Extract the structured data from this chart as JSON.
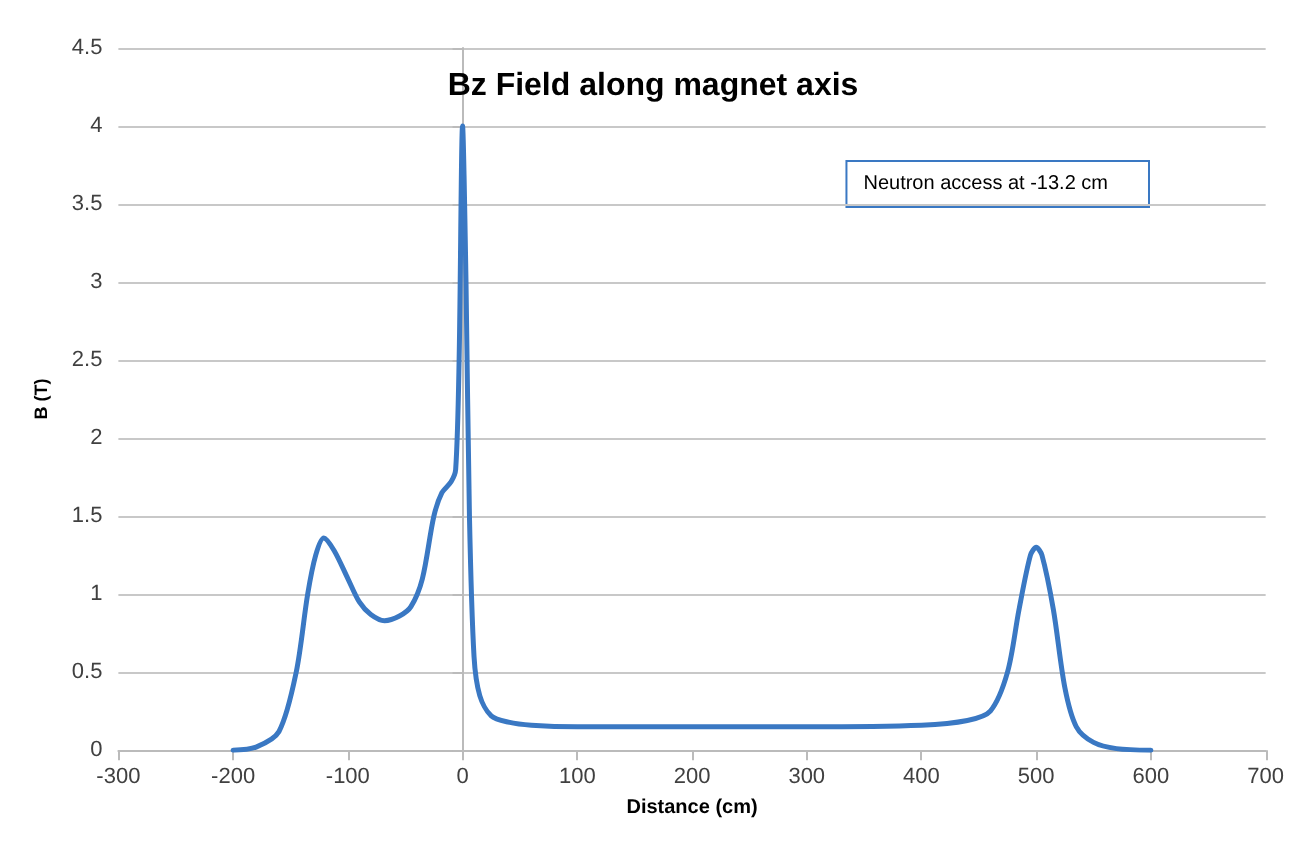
{
  "chart_data": {
    "type": "line",
    "title": "Bz Field along magnet axis",
    "xlabel": "Distance (cm)",
    "ylabel": "B (T)",
    "annotations": [
      "Neutron access at -13.2 cm"
    ],
    "series": [
      {
        "color": "#3a78c3",
        "x": [
          -200,
          -180,
          -160,
          -145,
          -135,
          -128,
          -121,
          -112,
          -100,
          -90,
          -80,
          -68,
          -55,
          -45,
          -35,
          -25,
          -18,
          -10,
          -6,
          -3,
          0,
          3,
          6,
          10,
          15,
          25,
          40,
          60,
          100,
          200,
          300,
          400,
          440,
          460,
          475,
          485,
          495,
          500,
          505,
          515,
          525,
          535,
          550,
          570,
          600
        ],
        "values": [
          0,
          0.02,
          0.12,
          0.5,
          1.0,
          1.25,
          1.36,
          1.28,
          1.1,
          0.95,
          0.87,
          0.83,
          0.86,
          0.92,
          1.1,
          1.5,
          1.65,
          1.72,
          1.8,
          2.5,
          4.0,
          3.0,
          1.5,
          0.6,
          0.35,
          0.22,
          0.18,
          0.16,
          0.15,
          0.15,
          0.15,
          0.16,
          0.19,
          0.25,
          0.5,
          0.9,
          1.25,
          1.3,
          1.25,
          0.9,
          0.4,
          0.15,
          0.05,
          0.01,
          0
        ]
      }
    ],
    "xlim": [
      -300,
      700
    ],
    "xticks": [
      -300,
      -200,
      -100,
      0,
      100,
      200,
      300,
      400,
      500,
      600,
      700
    ],
    "ylim": [
      0,
      4.5
    ],
    "yticks": [
      0,
      0.5,
      1,
      1.5,
      2,
      2.5,
      3,
      3.5,
      4,
      4.5
    ],
    "grid": "y",
    "marker": "none",
    "line_style": "solid"
  }
}
